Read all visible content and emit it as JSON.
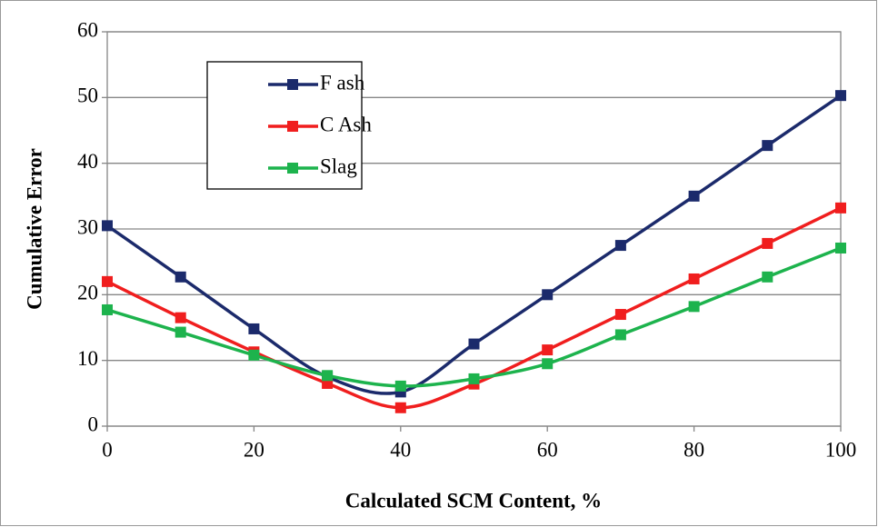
{
  "chart_data": {
    "type": "line",
    "xlabel": "Calculated SCM Content, %",
    "ylabel": "Cumulative Error",
    "x": [
      0,
      10,
      20,
      30,
      40,
      50,
      60,
      70,
      80,
      90,
      100
    ],
    "series": [
      {
        "name": "F ash",
        "color": "#1b2a6b",
        "values": [
          30.5,
          22.7,
          14.8,
          7.5,
          5.2,
          12.5,
          20,
          27.5,
          35,
          42.7,
          50.3
        ]
      },
      {
        "name": "C Ash",
        "color": "#f01e1e",
        "values": [
          22,
          16.5,
          11.3,
          6.5,
          2.8,
          6.4,
          11.6,
          17,
          22.4,
          27.8,
          33.2
        ]
      },
      {
        "name": "Slag",
        "color": "#1db34d",
        "values": [
          17.7,
          14.3,
          10.8,
          7.7,
          6.1,
          7.2,
          9.5,
          13.9,
          18.2,
          22.7,
          27.1
        ]
      }
    ],
    "xlim": [
      0,
      100
    ],
    "xticks": [
      0,
      20,
      40,
      60,
      80,
      100
    ],
    "ylim": [
      0,
      60
    ],
    "yticks": [
      0,
      10,
      20,
      30,
      40,
      50,
      60
    ],
    "grid": true,
    "legend": "upper left"
  }
}
